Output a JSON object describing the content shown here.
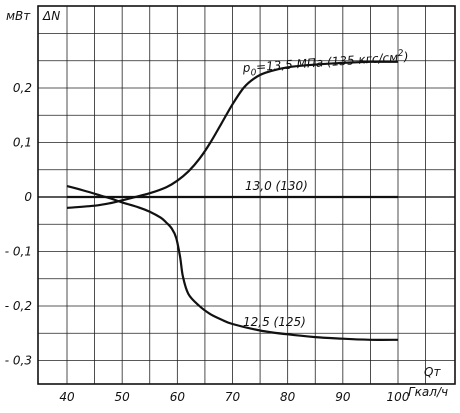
{
  "chart_data": {
    "type": "line",
    "xlabel": "Qт",
    "ylabel": "ΔN",
    "y_unit": "мВт",
    "x_unit": "Гкал/ч",
    "xlim": [
      40,
      100
    ],
    "ylim": [
      -0.33,
      0.33
    ],
    "x_ticks": [
      40,
      50,
      60,
      70,
      80,
      90,
      100
    ],
    "x_tick_labels": [
      "40",
      "50",
      "60",
      "70",
      "80",
      "90",
      "100"
    ],
    "y_ticks": [
      0.2,
      0.1,
      0,
      -0.1,
      -0.2,
      -0.3
    ],
    "y_tick_labels": [
      "0,2",
      "0,1",
      "0",
      "- 0,1",
      "- 0,2",
      "- 0,3"
    ],
    "grid": true,
    "series": [
      {
        "name": "p0=13,5 МПа (135 кгс/см²)",
        "label_parts": {
          "pre": "p",
          "sub": "0",
          "mid": "=13,5 МПа (135 кгс/см",
          "sup": "2",
          "post": ")"
        },
        "x": [
          40,
          45,
          48,
          50,
          52,
          55,
          58,
          60,
          62,
          64,
          66,
          68,
          70,
          72,
          74,
          76,
          80,
          85,
          90,
          95,
          100
        ],
        "y": [
          -0.02,
          -0.016,
          -0.011,
          -0.006,
          -0.001,
          0.007,
          0.018,
          0.03,
          0.047,
          0.07,
          0.1,
          0.135,
          0.17,
          0.2,
          0.218,
          0.228,
          0.238,
          0.243,
          0.246,
          0.248,
          0.248
        ]
      },
      {
        "name": "13,0 (130)",
        "x": [
          40,
          100
        ],
        "y": [
          0,
          0
        ]
      },
      {
        "name": "12,5 (125)",
        "x": [
          40,
          43,
          46,
          48,
          50,
          53,
          55,
          57,
          58,
          59,
          59.8,
          60.5,
          61,
          62,
          64,
          66,
          68,
          70,
          75,
          80,
          85,
          90,
          95,
          100
        ],
        "y": [
          0.02,
          0.012,
          0.003,
          -0.003,
          -0.01,
          -0.019,
          -0.027,
          -0.038,
          -0.047,
          -0.058,
          -0.075,
          -0.11,
          -0.145,
          -0.178,
          -0.2,
          -0.215,
          -0.225,
          -0.233,
          -0.245,
          -0.252,
          -0.257,
          -0.26,
          -0.262,
          -0.262
        ]
      }
    ]
  }
}
